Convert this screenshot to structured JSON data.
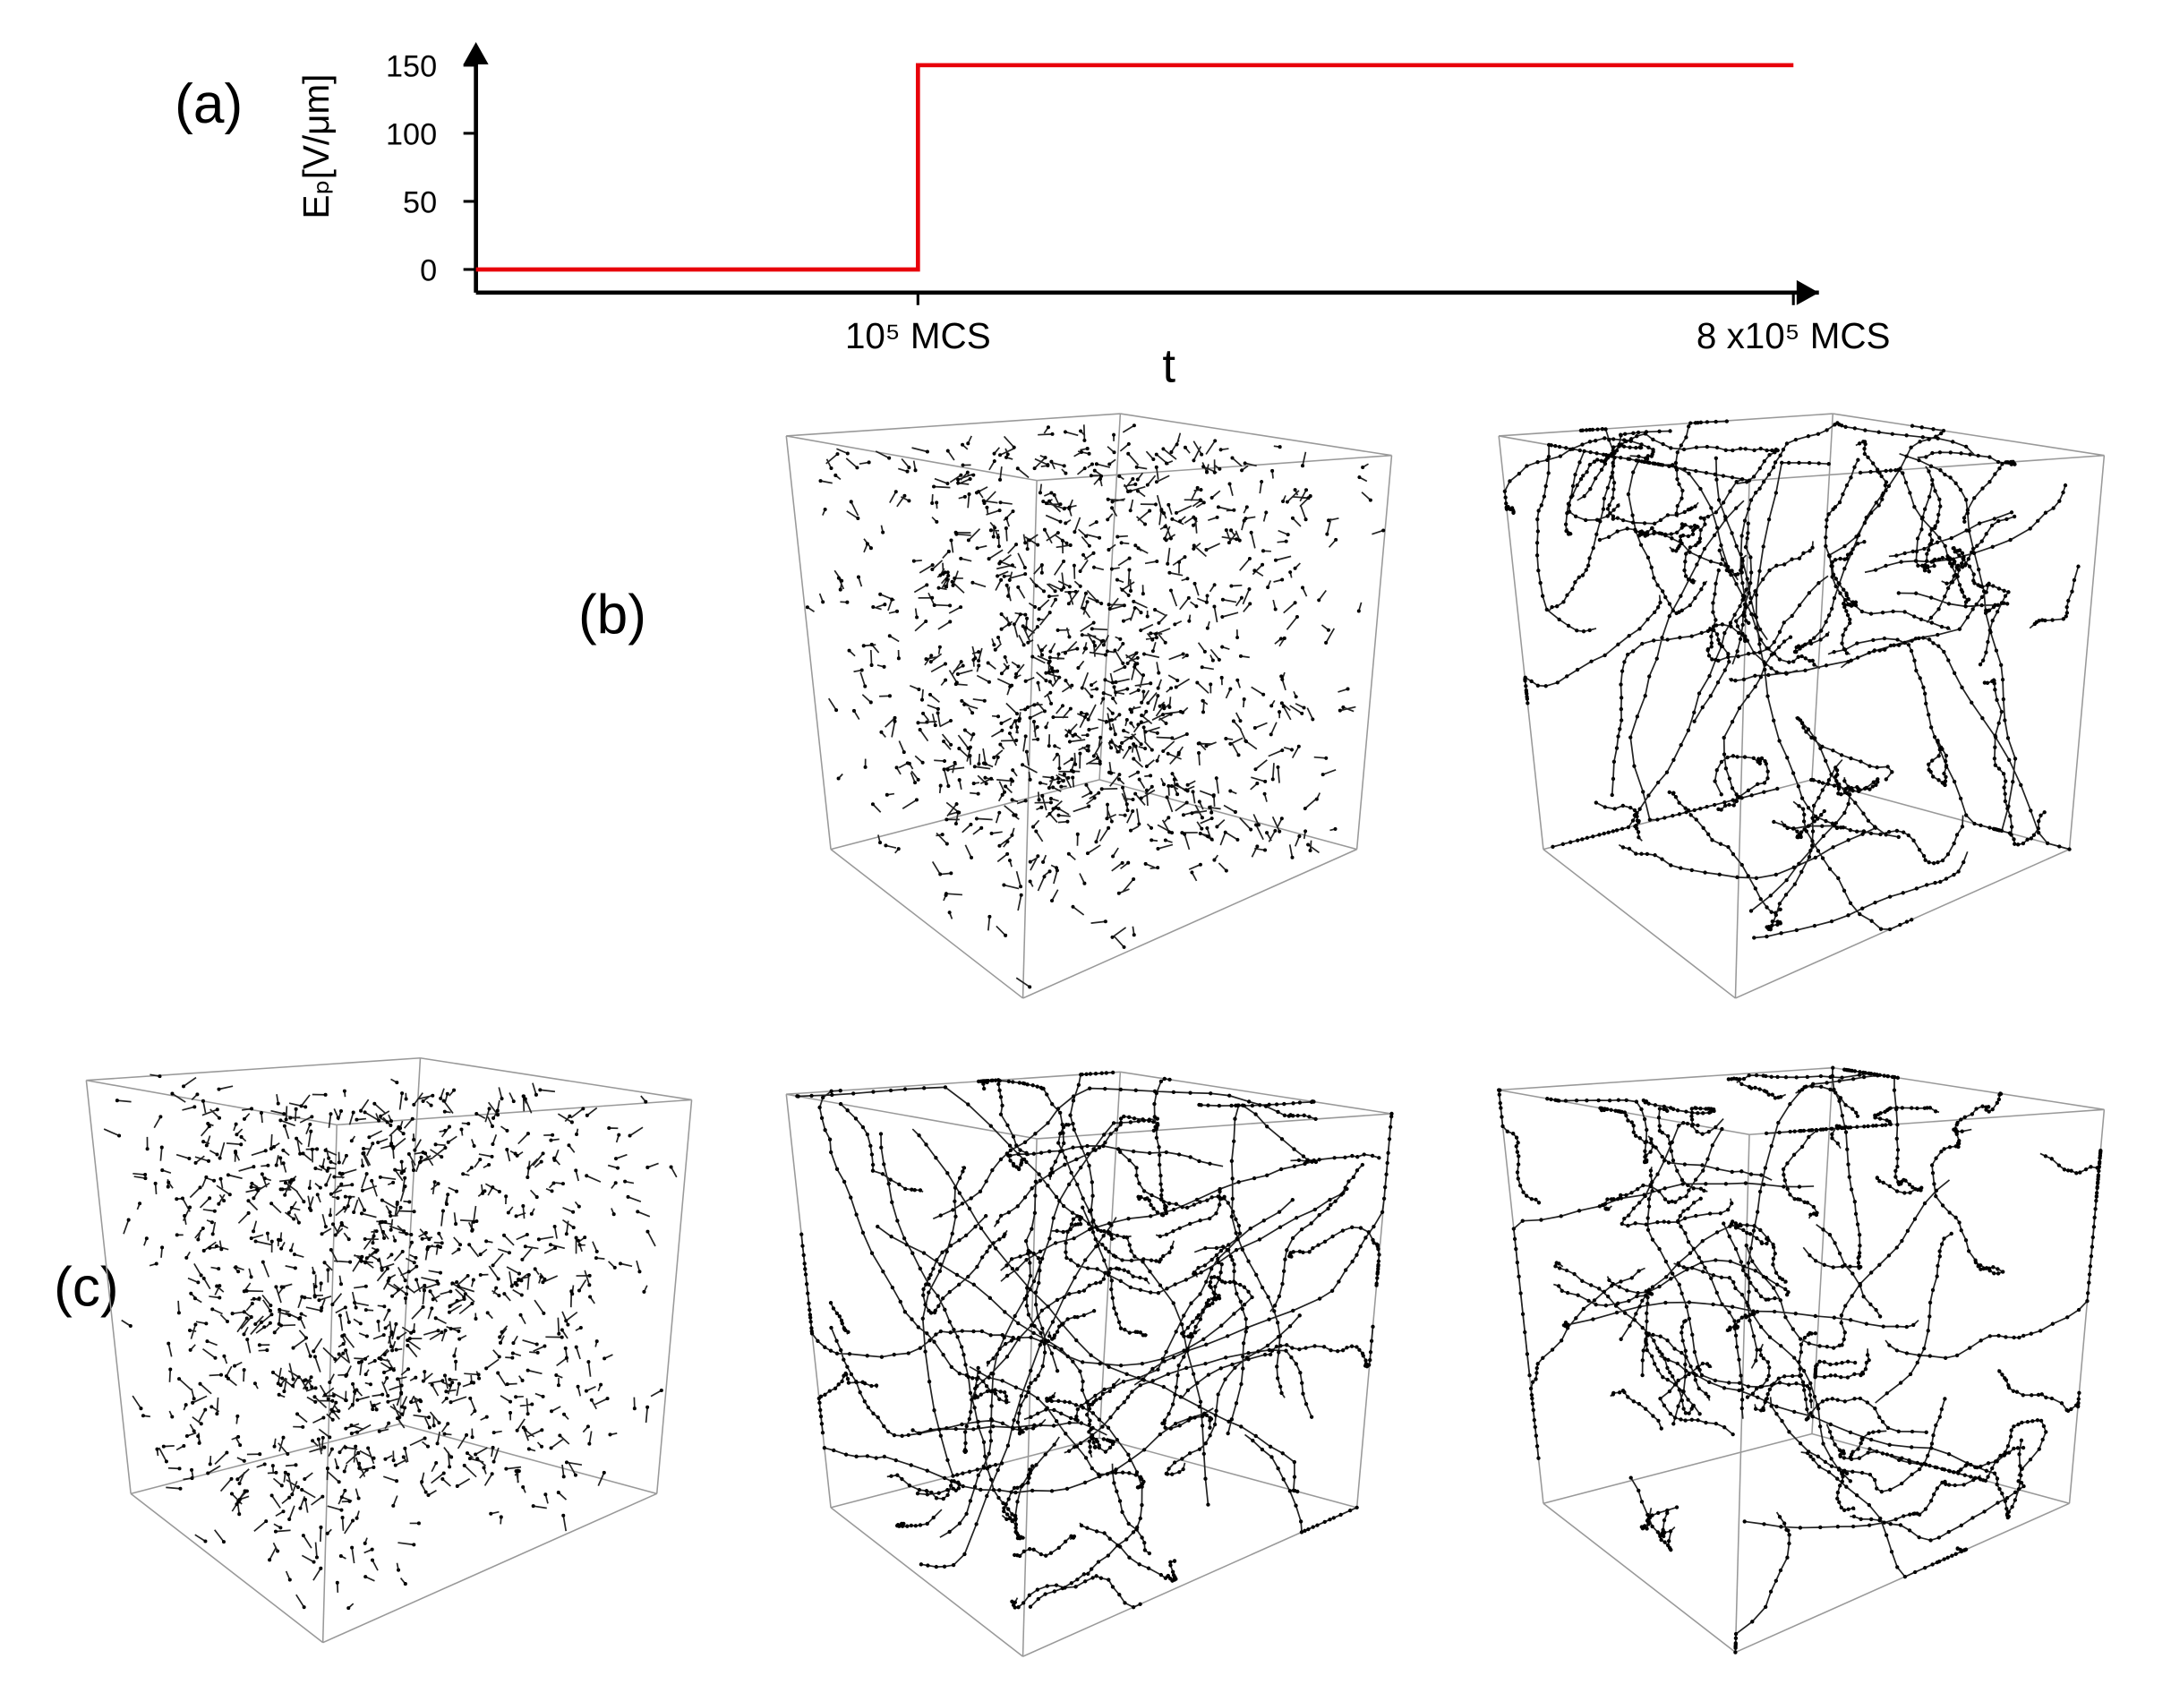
{
  "chart_data": {
    "type": "line",
    "panel_label": "(a)",
    "ylabel": "Eₚ[V/μm]",
    "xlabel": "t",
    "x": [
      35000,
      100000,
      100000,
      800000
    ],
    "series": [
      {
        "color": "#e8000b",
        "values": [
          0,
          0,
          150,
          150
        ]
      }
    ],
    "xscale": "log",
    "xlim": [
      35000,
      850000
    ],
    "xticks": [
      {
        "value": 100000,
        "label": "10⁵ MCS"
      },
      {
        "value": 800000,
        "label": "8 x10⁵ MCS"
      }
    ],
    "ylim": [
      -17,
      167
    ],
    "yticks": [
      0,
      50,
      100,
      150
    ]
  },
  "panel_labels": [
    "(b)",
    "(c)"
  ]
}
